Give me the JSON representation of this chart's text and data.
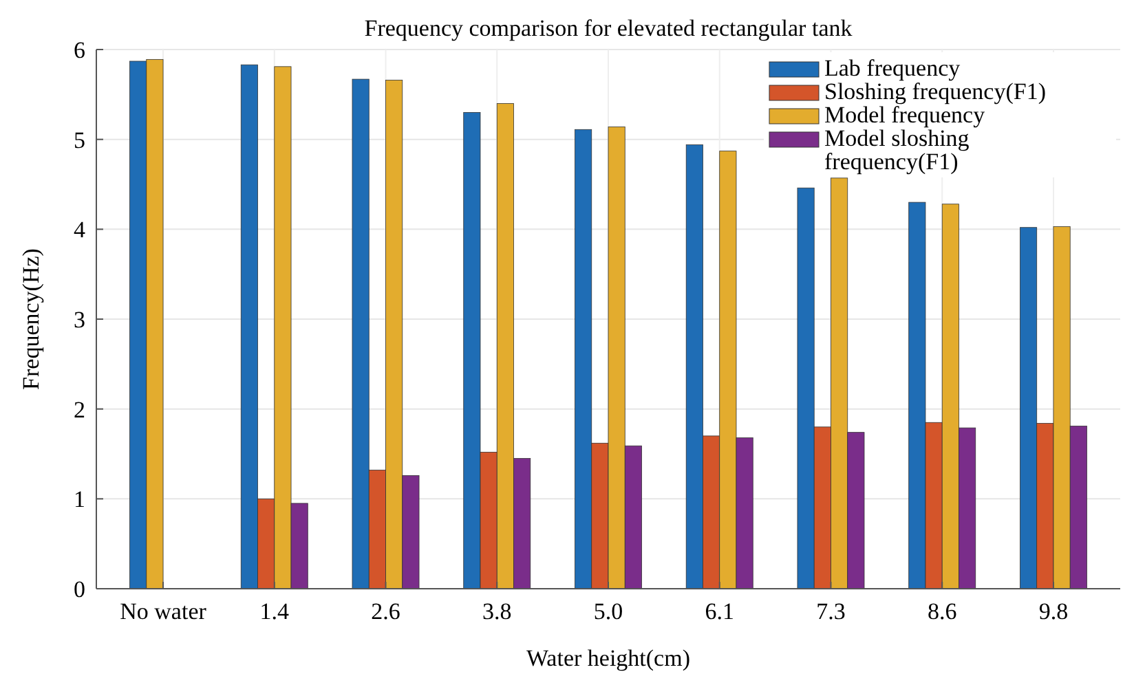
{
  "chart_data": {
    "type": "bar",
    "title": "Frequency comparison for elevated rectangular tank",
    "xlabel": "Water height(cm)",
    "ylabel": "Frequency(Hz)",
    "categories": [
      "No water",
      "1.4",
      "2.6",
      "3.8",
      "5.0",
      "6.1",
      "7.3",
      "8.6",
      "9.8"
    ],
    "series": [
      {
        "name": "Lab frequency",
        "color": "#1f6db5",
        "values": [
          5.87,
          5.83,
          5.67,
          5.3,
          5.11,
          4.94,
          4.46,
          4.3,
          4.02
        ]
      },
      {
        "name": "Sloshing frequency(F1)",
        "color": "#d4552a",
        "values": [
          null,
          1.0,
          1.32,
          1.52,
          1.62,
          1.7,
          1.8,
          1.85,
          1.84
        ]
      },
      {
        "name": "Model frequency",
        "color": "#e3ac2e",
        "values": [
          5.89,
          5.81,
          5.66,
          5.4,
          5.14,
          4.87,
          4.57,
          4.28,
          4.03
        ]
      },
      {
        "name": "Model sloshing frequency(F1)",
        "color": "#7a2d8a",
        "values": [
          null,
          0.95,
          1.26,
          1.45,
          1.59,
          1.68,
          1.74,
          1.79,
          1.81
        ]
      }
    ],
    "ylim": [
      0,
      6
    ],
    "yticks": [
      0,
      1,
      2,
      3,
      4,
      5,
      6
    ],
    "grid": true,
    "legend": "top right"
  }
}
